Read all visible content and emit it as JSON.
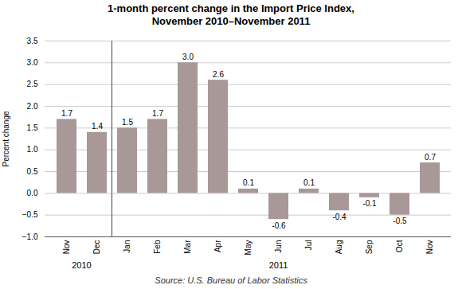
{
  "chart_data": {
    "type": "bar",
    "title": "1-month percent change in the Import Price Index,",
    "subtitle": "November 2010–November 2011",
    "ylabel": "Percent change",
    "source": "Source: U.S. Bureau of Labor Statistics",
    "categories": [
      "Nov",
      "Dec",
      "Jan",
      "Feb",
      "Mar",
      "Apr",
      "May",
      "Jun",
      "Jul",
      "Aug",
      "Sep",
      "Oct",
      "Nov"
    ],
    "values": [
      1.7,
      1.4,
      1.5,
      1.7,
      3.0,
      2.6,
      0.1,
      -0.6,
      0.1,
      -0.4,
      -0.1,
      -0.5,
      0.7
    ],
    "value_labels": [
      "1.7",
      "1.4",
      "1.5",
      "1.7",
      "3.0",
      "2.6",
      "0.1",
      "-0.6",
      "0.1",
      "-0.4",
      "-0.1",
      "-0.5",
      "0.7"
    ],
    "color": "#a89898",
    "ylim": [
      -1.0,
      3.5
    ],
    "yticks": [
      {
        "value": -1.0,
        "label": "−1.0"
      },
      {
        "value": -0.5,
        "label": "−0.5"
      },
      {
        "value": 0.0,
        "label": "0.0"
      },
      {
        "value": 0.5,
        "label": "0.5"
      },
      {
        "value": 1.0,
        "label": "1.0"
      },
      {
        "value": 1.5,
        "label": "1.5"
      },
      {
        "value": 2.0,
        "label": "2.0"
      },
      {
        "value": 2.5,
        "label": "2.5"
      },
      {
        "value": 3.0,
        "label": "3.0"
      },
      {
        "value": 3.5,
        "label": "3.5"
      }
    ],
    "grid": true,
    "data_labels": true,
    "annotations": [
      {
        "text": "2010",
        "x": 0.5
      },
      {
        "text": "2011",
        "x": 7.0
      }
    ]
  }
}
